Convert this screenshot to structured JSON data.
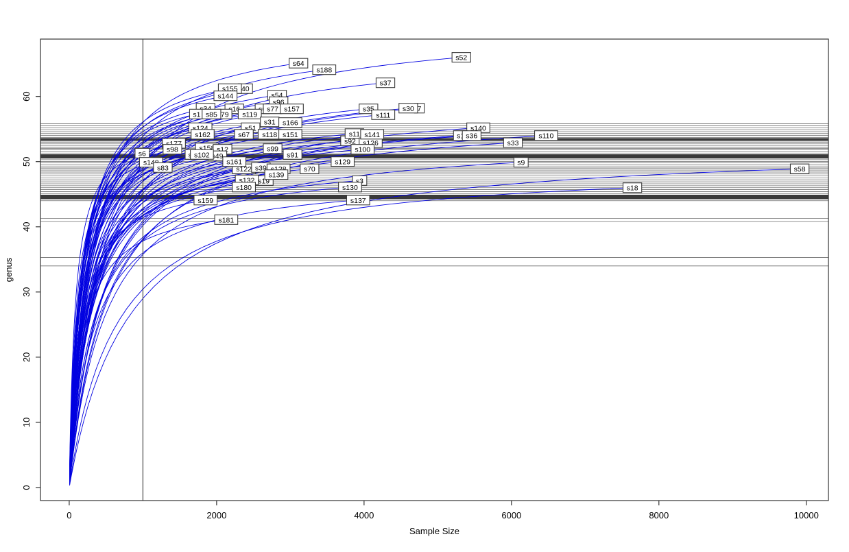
{
  "chart_data": {
    "type": "line",
    "title": "",
    "xlabel": "Sample Size",
    "ylabel": "genus",
    "xlim": [
      -390,
      10300
    ],
    "ylim": [
      -2,
      68.8
    ],
    "x_ticks": [
      0,
      2000,
      4000,
      6000,
      8000,
      10000
    ],
    "y_ticks": [
      0,
      10,
      20,
      30,
      40,
      50,
      60
    ],
    "grid": false,
    "legend": "none",
    "vline_x": 1000,
    "colors": {
      "curve": "#0000e0",
      "hline_thin": "#6b6b6b",
      "hline_thick": "#3a3a3a",
      "axis": "#333333",
      "label_box_border": "#3a3a3a",
      "label_box_fill": "#ffffff",
      "text": "#000000"
    },
    "hlines": [
      {
        "y": 55.8,
        "w": 1
      },
      {
        "y": 55.5,
        "w": 1
      },
      {
        "y": 55.2,
        "w": 1
      },
      {
        "y": 54.9,
        "w": 1
      },
      {
        "y": 54.6,
        "w": 1
      },
      {
        "y": 54.3,
        "w": 1
      },
      {
        "y": 54.0,
        "w": 1
      },
      {
        "y": 53.7,
        "w": 1
      },
      {
        "y": 53.5,
        "w": 2
      },
      {
        "y": 53.3,
        "w": 2
      },
      {
        "y": 53.0,
        "w": 1
      },
      {
        "y": 52.8,
        "w": 1
      },
      {
        "y": 52.5,
        "w": 1
      },
      {
        "y": 52.2,
        "w": 1
      },
      {
        "y": 52.0,
        "w": 1
      },
      {
        "y": 51.8,
        "w": 1
      },
      {
        "y": 51.5,
        "w": 1
      },
      {
        "y": 51.2,
        "w": 1
      },
      {
        "y": 51.0,
        "w": 2
      },
      {
        "y": 50.8,
        "w": 2
      },
      {
        "y": 50.6,
        "w": 2
      },
      {
        "y": 50.3,
        "w": 1
      },
      {
        "y": 50.0,
        "w": 1
      },
      {
        "y": 49.8,
        "w": 1
      },
      {
        "y": 49.5,
        "w": 1
      },
      {
        "y": 49.2,
        "w": 1
      },
      {
        "y": 49.0,
        "w": 1
      },
      {
        "y": 48.7,
        "w": 1
      },
      {
        "y": 48.4,
        "w": 1
      },
      {
        "y": 48.1,
        "w": 1
      },
      {
        "y": 47.8,
        "w": 1
      },
      {
        "y": 47.5,
        "w": 1
      },
      {
        "y": 47.2,
        "w": 1
      },
      {
        "y": 46.9,
        "w": 1
      },
      {
        "y": 46.6,
        "w": 1
      },
      {
        "y": 46.3,
        "w": 1
      },
      {
        "y": 46.0,
        "w": 1
      },
      {
        "y": 45.7,
        "w": 1
      },
      {
        "y": 45.4,
        "w": 1
      },
      {
        "y": 45.1,
        "w": 1
      },
      {
        "y": 44.8,
        "w": 2
      },
      {
        "y": 44.6,
        "w": 2
      },
      {
        "y": 44.4,
        "w": 2
      },
      {
        "y": 44.2,
        "w": 1
      },
      {
        "y": 44.0,
        "w": 1
      },
      {
        "y": 41.3,
        "w": 1
      },
      {
        "y": 40.8,
        "w": 1
      },
      {
        "y": 35.3,
        "w": 1
      },
      {
        "y": 34.0,
        "w": 1
      }
    ],
    "series": [
      {
        "name": "s52",
        "end_x": 5320,
        "end_y": 66.0,
        "partial": false
      },
      {
        "name": "s64",
        "end_x": 3110,
        "end_y": 65.1,
        "partial": false
      },
      {
        "name": "s188",
        "end_x": 3460,
        "end_y": 64.1,
        "partial": false
      },
      {
        "name": "s37",
        "end_x": 4290,
        "end_y": 62.1,
        "partial": false
      },
      {
        "name": "40",
        "end_x": 2390,
        "end_y": 61.2,
        "partial": true
      },
      {
        "name": "s155",
        "end_x": 2180,
        "end_y": 61.2,
        "partial": false
      },
      {
        "name": "s144",
        "end_x": 2120,
        "end_y": 60.1,
        "partial": false
      },
      {
        "name": "s54",
        "end_x": 2820,
        "end_y": 60.2,
        "partial": false
      },
      {
        "name": "s96",
        "end_x": 2840,
        "end_y": 59.2,
        "partial": false
      },
      {
        "name": "s34",
        "end_x": 1850,
        "end_y": 58.2,
        "partial": false
      },
      {
        "name": "s16",
        "end_x": 2240,
        "end_y": 58.1,
        "partial": false
      },
      {
        "name": "s6",
        "end_x": 2620,
        "end_y": 58.1,
        "partial": true
      },
      {
        "name": "s77",
        "end_x": 2760,
        "end_y": 58.1,
        "partial": false
      },
      {
        "name": "s157",
        "end_x": 3020,
        "end_y": 58.1,
        "partial": false
      },
      {
        "name": "s35",
        "end_x": 4060,
        "end_y": 58.1,
        "partial": false
      },
      {
        "name": "7",
        "end_x": 4750,
        "end_y": 58.2,
        "partial": true
      },
      {
        "name": "s30",
        "end_x": 4600,
        "end_y": 58.2,
        "partial": false
      },
      {
        "name": "s1",
        "end_x": 1730,
        "end_y": 57.3,
        "partial": true
      },
      {
        "name": "79",
        "end_x": 2110,
        "end_y": 57.3,
        "partial": true
      },
      {
        "name": "s85",
        "end_x": 1930,
        "end_y": 57.3,
        "partial": false
      },
      {
        "name": "s119",
        "end_x": 2450,
        "end_y": 57.3,
        "partial": false
      },
      {
        "name": "s111",
        "end_x": 4260,
        "end_y": 57.2,
        "partial": false
      },
      {
        "name": "s31",
        "end_x": 2720,
        "end_y": 56.1,
        "partial": false
      },
      {
        "name": "s166",
        "end_x": 3000,
        "end_y": 56.0,
        "partial": false
      },
      {
        "name": "s124",
        "end_x": 1780,
        "end_y": 55.2,
        "partial": false
      },
      {
        "name": "s51",
        "end_x": 2460,
        "end_y": 55.2,
        "partial": false
      },
      {
        "name": "s140",
        "end_x": 5550,
        "end_y": 55.2,
        "partial": false
      },
      {
        "name": "s162",
        "end_x": 1810,
        "end_y": 54.2,
        "partial": false
      },
      {
        "name": "s67",
        "end_x": 2370,
        "end_y": 54.2,
        "partial": false
      },
      {
        "name": "s118",
        "end_x": 2720,
        "end_y": 54.2,
        "partial": false
      },
      {
        "name": "s151",
        "end_x": 3000,
        "end_y": 54.2,
        "partial": false
      },
      {
        "name": "s92",
        "end_x": 3810,
        "end_y": 53.2,
        "partial": false
      },
      {
        "name": "s11",
        "end_x": 3870,
        "end_y": 54.3,
        "partial": false
      },
      {
        "name": "s126",
        "end_x": 4090,
        "end_y": 52.9,
        "partial": true
      },
      {
        "name": "s141",
        "end_x": 4110,
        "end_y": 54.2,
        "partial": false
      },
      {
        "name": "s1",
        "end_x": 5310,
        "end_y": 54.0,
        "partial": true
      },
      {
        "name": "s36",
        "end_x": 5460,
        "end_y": 54.0,
        "partial": false
      },
      {
        "name": "s110",
        "end_x": 6470,
        "end_y": 54.0,
        "partial": false
      },
      {
        "name": "s33",
        "end_x": 6020,
        "end_y": 52.9,
        "partial": false
      },
      {
        "name": "s177",
        "end_x": 1420,
        "end_y": 52.8,
        "partial": false
      },
      {
        "name": "s158",
        "end_x": 1870,
        "end_y": 52.1,
        "partial": true
      },
      {
        "name": "s12",
        "end_x": 2080,
        "end_y": 51.9,
        "partial": false
      },
      {
        "name": "s98",
        "end_x": 1400,
        "end_y": 51.9,
        "partial": false
      },
      {
        "name": "s99",
        "end_x": 2760,
        "end_y": 52.0,
        "partial": false
      },
      {
        "name": "s100",
        "end_x": 3980,
        "end_y": 51.9,
        "partial": false
      },
      {
        "name": "s6",
        "end_x": 990,
        "end_y": 51.3,
        "partial": false
      },
      {
        "name": "s",
        "end_x": 1640,
        "end_y": 51.1,
        "partial": true
      },
      {
        "name": "s49",
        "end_x": 2010,
        "end_y": 50.9,
        "partial": true
      },
      {
        "name": "s102",
        "end_x": 1800,
        "end_y": 51.1,
        "partial": false
      },
      {
        "name": "s91",
        "end_x": 3030,
        "end_y": 51.1,
        "partial": false
      },
      {
        "name": "s148",
        "end_x": 1110,
        "end_y": 49.9,
        "partial": false
      },
      {
        "name": "s122",
        "end_x": 2370,
        "end_y": 48.9,
        "partial": true
      },
      {
        "name": "s161",
        "end_x": 2240,
        "end_y": 50.0,
        "partial": false
      },
      {
        "name": "s129",
        "end_x": 3710,
        "end_y": 50.0,
        "partial": false
      },
      {
        "name": "s9",
        "end_x": 6130,
        "end_y": 49.9,
        "partial": false
      },
      {
        "name": "s83",
        "end_x": 1270,
        "end_y": 49.1,
        "partial": false
      },
      {
        "name": "s39",
        "end_x": 2600,
        "end_y": 49.1,
        "partial": false
      },
      {
        "name": "s128",
        "end_x": 2840,
        "end_y": 48.9,
        "partial": false
      },
      {
        "name": "s70",
        "end_x": 3260,
        "end_y": 48.9,
        "partial": false
      },
      {
        "name": "s58",
        "end_x": 9910,
        "end_y": 48.9,
        "partial": false
      },
      {
        "name": "s19",
        "end_x": 2640,
        "end_y": 47.1,
        "partial": false
      },
      {
        "name": "s139",
        "end_x": 2810,
        "end_y": 48.0,
        "partial": false
      },
      {
        "name": "s132",
        "end_x": 2410,
        "end_y": 47.2,
        "partial": false
      },
      {
        "name": "s180",
        "end_x": 2370,
        "end_y": 46.1,
        "partial": true
      },
      {
        "name": "s3",
        "end_x": 3940,
        "end_y": 47.1,
        "partial": false
      },
      {
        "name": "s130",
        "end_x": 3810,
        "end_y": 46.1,
        "partial": false
      },
      {
        "name": "s18",
        "end_x": 7640,
        "end_y": 46.0,
        "partial": false
      },
      {
        "name": "s159",
        "end_x": 1850,
        "end_y": 44.1,
        "partial": false
      },
      {
        "name": "s137",
        "end_x": 3920,
        "end_y": 44.1,
        "partial": false
      },
      {
        "name": "s181",
        "end_x": 2130,
        "end_y": 41.1,
        "partial": false
      }
    ]
  }
}
